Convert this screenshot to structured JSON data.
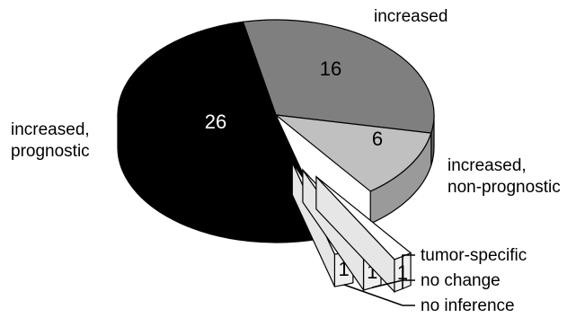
{
  "chart_data": {
    "type": "pie",
    "style": "3d-exploded",
    "title": "",
    "slices": [
      {
        "label": "increased",
        "value": 16,
        "value_label": "16",
        "color": "#7f7f7f",
        "text_color": "#000000",
        "exploded": false
      },
      {
        "label": "increased, non-prognostic",
        "label_lines": [
          "increased,",
          "non-prognostic"
        ],
        "value": 6,
        "value_label": "6",
        "color": "#c0c0c0",
        "text_color": "#000000",
        "exploded": false
      },
      {
        "label": "tumor-specific",
        "value": 1,
        "value_label": "1",
        "color": "#ffffff",
        "text_color": "#000000",
        "exploded": true
      },
      {
        "label": "no change",
        "value": 1,
        "value_label": "1",
        "color": "#ffffff",
        "text_color": "#000000",
        "exploded": true
      },
      {
        "label": "no inference",
        "value": 1,
        "value_label": "1",
        "color": "#ffffff",
        "text_color": "#000000",
        "exploded": true
      },
      {
        "label": "increased, prognostic",
        "label_lines": [
          "increased,",
          "prognostic"
        ],
        "value": 26,
        "value_label": "26",
        "color": "#000000",
        "text_color": "#ffffff",
        "exploded": false
      }
    ]
  }
}
